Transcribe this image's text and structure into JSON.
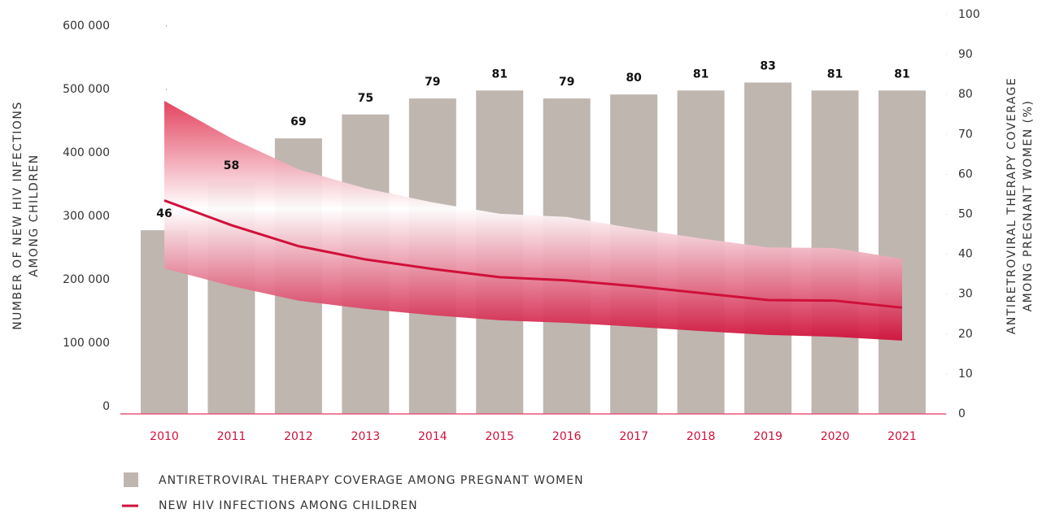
{
  "chart_data": {
    "type": "bar_line_band",
    "categories": [
      "2010",
      "2011",
      "2012",
      "2013",
      "2014",
      "2015",
      "2016",
      "2017",
      "2018",
      "2019",
      "2020",
      "2021"
    ],
    "series": [
      {
        "name": "ANTIRETROVIRAL THERAPY COVERAGE AMONG PREGNANT WOMEN",
        "type": "bar",
        "axis": "y2",
        "color": "#bfb6b0",
        "values": [
          46,
          58,
          69,
          75,
          79,
          81,
          79,
          80,
          81,
          83,
          81,
          81
        ]
      },
      {
        "name": "NEW HIV INFECTIONS AMONG CHILDREN",
        "type": "line",
        "axis": "y",
        "color": "#d0103a",
        "values": [
          325000,
          286000,
          253000,
          232000,
          217000,
          204000,
          199000,
          190000,
          179000,
          168000,
          167000,
          156000
        ],
        "lower": [
          218000,
          190000,
          167000,
          154000,
          144000,
          136000,
          132000,
          126000,
          119000,
          113000,
          110000,
          104000
        ],
        "upper": [
          482000,
          423000,
          374000,
          344000,
          322000,
          304000,
          299000,
          281000,
          265000,
          251000,
          250000,
          233000
        ]
      }
    ],
    "y_label": [
      "NUMBER OF NEW HIV INFECTIONS",
      "AMONG CHILDREN"
    ],
    "y2_label": [
      "ANTIRETROVIRAL THERAPY COVERAGE",
      "AMONG PREGNANT WOMEN (%)"
    ],
    "ylim": [
      0,
      600000
    ],
    "yticks": [
      {
        "value": 0,
        "label": "0"
      },
      {
        "value": 100000,
        "label": "100 000"
      },
      {
        "value": 200000,
        "label": "200 000"
      },
      {
        "value": 300000,
        "label": "300 000"
      },
      {
        "value": 400000,
        "label": "400 000"
      },
      {
        "value": 500000,
        "label": "500 000"
      },
      {
        "value": 600000,
        "label": "600 000"
      }
    ],
    "y2lim": [
      0,
      100
    ],
    "y2ticks": [
      0,
      10,
      20,
      30,
      40,
      50,
      60,
      70,
      80,
      90,
      100
    ]
  }
}
